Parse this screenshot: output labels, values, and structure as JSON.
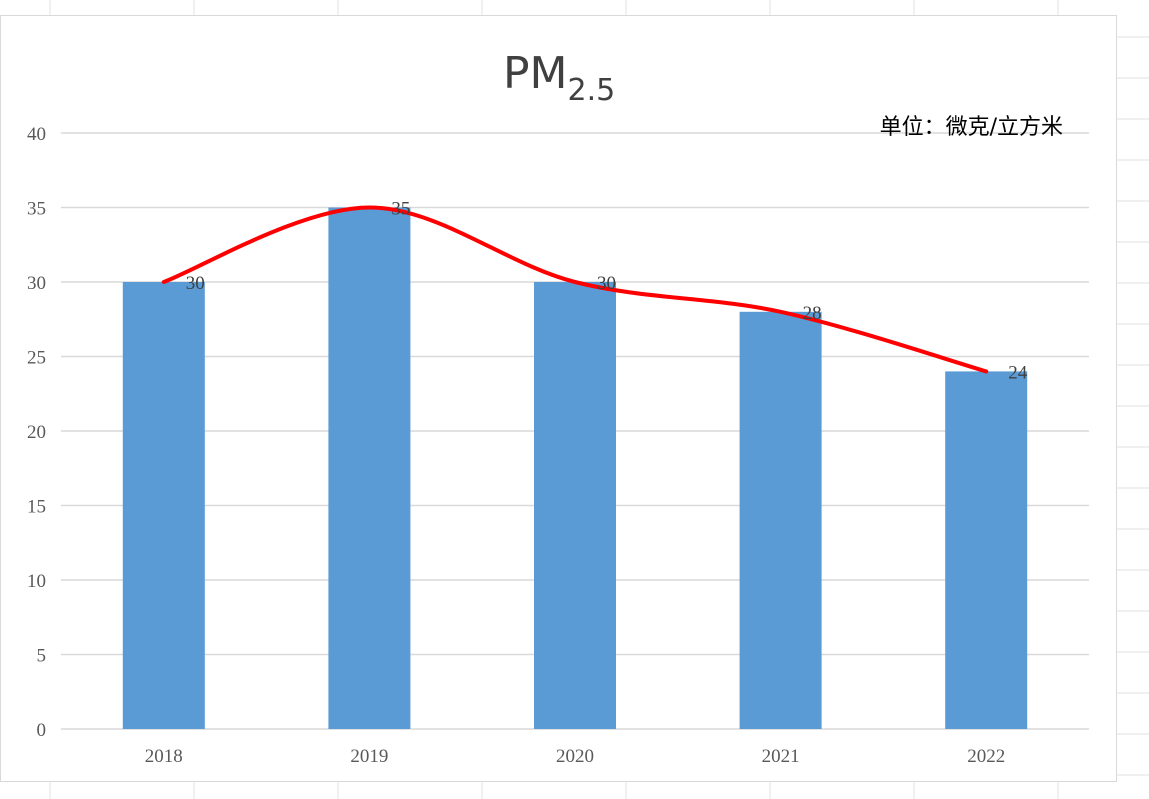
{
  "chart_data": {
    "type": "bar",
    "title": "PM",
    "title_subscript": "2.5",
    "unit_note": "单位：微克/立方米",
    "categories": [
      "2018",
      "2019",
      "2020",
      "2021",
      "2022"
    ],
    "values": [
      30,
      35,
      30,
      28,
      24
    ],
    "data_labels": [
      "30",
      "35",
      "30",
      "28",
      "24"
    ],
    "ylim": [
      0,
      40
    ],
    "y_ticks": [
      "0",
      "5",
      "10",
      "15",
      "20",
      "25",
      "30",
      "35",
      "40"
    ],
    "grid": true,
    "trend_line": "smooth curve through the bar tops",
    "colors": {
      "bar": "#5b9bd5",
      "trend": "#ff0000",
      "grid": "#d9d9d9"
    }
  }
}
